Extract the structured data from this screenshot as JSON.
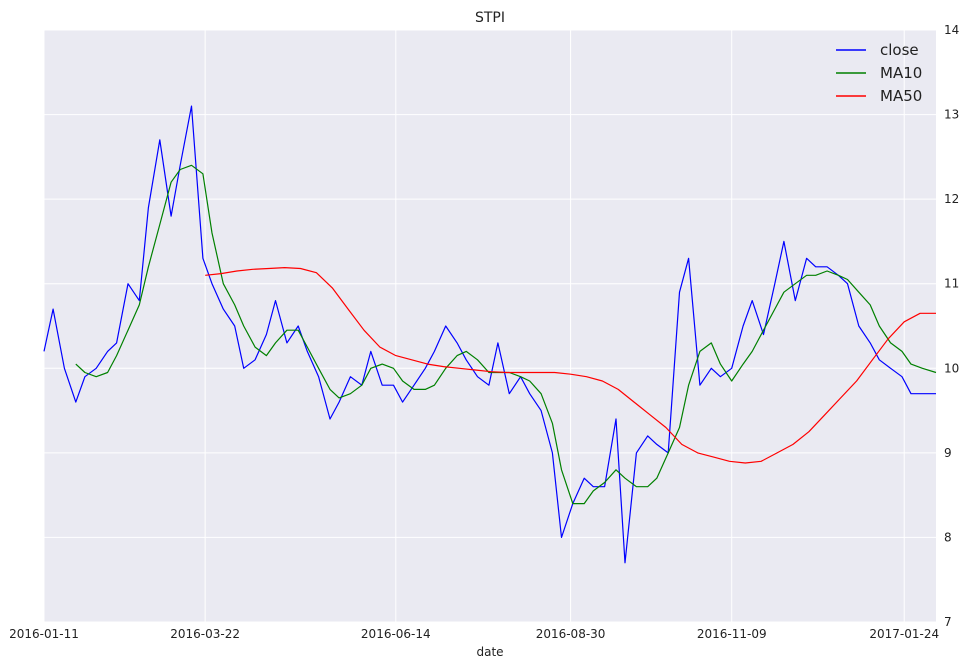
{
  "chart_data": {
    "type": "line",
    "title": "STPI",
    "xlabel": "date",
    "ylabel": "",
    "ylim": [
      7,
      14
    ],
    "y_ticks": [
      7,
      8,
      9,
      10,
      11,
      12,
      13,
      14
    ],
    "x_ticks": [
      "2016-01-11",
      "2016-03-22",
      "2016-06-14",
      "2016-08-30",
      "2016-11-09",
      "2017-01-24"
    ],
    "x_range": [
      "2016-01-11",
      "2017-02-07"
    ],
    "y_axis_side": "right",
    "grid": true,
    "legend_position": "upper-right",
    "colors": {
      "close": "#0000ff",
      "MA10": "#008000",
      "MA50": "#ff0000",
      "plot_bg": "#eaeaf2",
      "grid": "#ffffff"
    },
    "series": [
      {
        "name": "close",
        "x": [
          "2016-01-11",
          "2016-01-15",
          "2016-01-20",
          "2016-01-25",
          "2016-01-29",
          "2016-02-03",
          "2016-02-08",
          "2016-02-12",
          "2016-02-17",
          "2016-02-22",
          "2016-02-26",
          "2016-03-02",
          "2016-03-07",
          "2016-03-11",
          "2016-03-16",
          "2016-03-21",
          "2016-03-25",
          "2016-03-30",
          "2016-04-04",
          "2016-04-08",
          "2016-04-13",
          "2016-04-18",
          "2016-04-22",
          "2016-04-27",
          "2016-05-02",
          "2016-05-06",
          "2016-05-11",
          "2016-05-16",
          "2016-05-20",
          "2016-05-25",
          "2016-05-30",
          "2016-06-03",
          "2016-06-08",
          "2016-06-13",
          "2016-06-17",
          "2016-06-22",
          "2016-06-27",
          "2016-07-01",
          "2016-07-06",
          "2016-07-11",
          "2016-07-15",
          "2016-07-20",
          "2016-07-25",
          "2016-07-29",
          "2016-08-03",
          "2016-08-08",
          "2016-08-12",
          "2016-08-17",
          "2016-08-22",
          "2016-08-26",
          "2016-08-31",
          "2016-09-05",
          "2016-09-09",
          "2016-09-14",
          "2016-09-19",
          "2016-09-23",
          "2016-09-28",
          "2016-10-03",
          "2016-10-07",
          "2016-10-12",
          "2016-10-17",
          "2016-10-21",
          "2016-10-26",
          "2016-10-31",
          "2016-11-04",
          "2016-11-09",
          "2016-11-14",
          "2016-11-18",
          "2016-11-23",
          "2016-11-28",
          "2016-12-02",
          "2016-12-07",
          "2016-12-12",
          "2016-12-16",
          "2016-12-21",
          "2016-12-26",
          "2016-12-30",
          "2017-01-04",
          "2017-01-09",
          "2017-01-13",
          "2017-01-18",
          "2017-01-23",
          "2017-01-27",
          "2017-02-01",
          "2017-02-07"
        ],
        "values": [
          10.2,
          10.7,
          10.0,
          9.6,
          9.9,
          10.0,
          10.2,
          10.3,
          11.0,
          10.8,
          11.9,
          12.7,
          11.8,
          12.4,
          13.1,
          11.3,
          11.0,
          10.7,
          10.5,
          10.0,
          10.1,
          10.4,
          10.8,
          10.3,
          10.5,
          10.2,
          9.9,
          9.4,
          9.6,
          9.9,
          9.8,
          10.2,
          9.8,
          9.8,
          9.6,
          9.8,
          10.0,
          10.2,
          10.5,
          10.3,
          10.1,
          9.9,
          9.8,
          10.3,
          9.7,
          9.9,
          9.7,
          9.5,
          9.0,
          8.0,
          8.4,
          8.7,
          8.6,
          8.6,
          9.4,
          7.7,
          9.0,
          9.2,
          9.1,
          9.0,
          10.9,
          11.3,
          9.8,
          10.0,
          9.9,
          10.0,
          10.5,
          10.8,
          10.4,
          11.0,
          11.5,
          10.8,
          11.3,
          11.2,
          11.2,
          11.1,
          11.0,
          10.5,
          10.3,
          10.1,
          10.0,
          9.9,
          9.7,
          9.7,
          9.7
        ]
      },
      {
        "name": "MA10",
        "x": [
          "2016-01-25",
          "2016-01-29",
          "2016-02-03",
          "2016-02-08",
          "2016-02-12",
          "2016-02-17",
          "2016-02-22",
          "2016-02-26",
          "2016-03-02",
          "2016-03-07",
          "2016-03-11",
          "2016-03-16",
          "2016-03-21",
          "2016-03-25",
          "2016-03-30",
          "2016-04-04",
          "2016-04-08",
          "2016-04-13",
          "2016-04-18",
          "2016-04-22",
          "2016-04-27",
          "2016-05-02",
          "2016-05-06",
          "2016-05-11",
          "2016-05-16",
          "2016-05-20",
          "2016-05-25",
          "2016-05-30",
          "2016-06-03",
          "2016-06-08",
          "2016-06-13",
          "2016-06-17",
          "2016-06-22",
          "2016-06-27",
          "2016-07-01",
          "2016-07-06",
          "2016-07-11",
          "2016-07-15",
          "2016-07-20",
          "2016-07-25",
          "2016-07-29",
          "2016-08-03",
          "2016-08-08",
          "2016-08-12",
          "2016-08-17",
          "2016-08-22",
          "2016-08-26",
          "2016-08-31",
          "2016-09-05",
          "2016-09-09",
          "2016-09-14",
          "2016-09-19",
          "2016-09-23",
          "2016-09-28",
          "2016-10-03",
          "2016-10-07",
          "2016-10-12",
          "2016-10-17",
          "2016-10-21",
          "2016-10-26",
          "2016-10-31",
          "2016-11-04",
          "2016-11-09",
          "2016-11-14",
          "2016-11-18",
          "2016-11-23",
          "2016-11-28",
          "2016-12-02",
          "2016-12-07",
          "2016-12-12",
          "2016-12-16",
          "2016-12-21",
          "2016-12-26",
          "2016-12-30",
          "2017-01-04",
          "2017-01-09",
          "2017-01-13",
          "2017-01-18",
          "2017-01-23",
          "2017-01-27",
          "2017-02-01",
          "2017-02-07"
        ],
        "values": [
          10.05,
          9.95,
          9.9,
          9.95,
          10.15,
          10.45,
          10.75,
          11.2,
          11.7,
          12.2,
          12.35,
          12.4,
          12.3,
          11.6,
          11.0,
          10.75,
          10.5,
          10.25,
          10.15,
          10.3,
          10.45,
          10.45,
          10.25,
          10.0,
          9.75,
          9.65,
          9.7,
          9.8,
          10.0,
          10.05,
          10.0,
          9.85,
          9.75,
          9.75,
          9.8,
          10.0,
          10.15,
          10.2,
          10.1,
          9.95,
          9.95,
          9.95,
          9.9,
          9.85,
          9.7,
          9.35,
          8.8,
          8.4,
          8.4,
          8.55,
          8.65,
          8.8,
          8.7,
          8.6,
          8.6,
          8.7,
          9.0,
          9.3,
          9.8,
          10.2,
          10.3,
          10.05,
          9.85,
          10.05,
          10.2,
          10.45,
          10.7,
          10.9,
          11.0,
          11.1,
          11.1,
          11.15,
          11.1,
          11.05,
          10.9,
          10.75,
          10.5,
          10.3,
          10.2,
          10.05,
          10.0,
          9.95
        ]
      },
      {
        "name": "MA50",
        "x": [
          "2016-03-22",
          "2016-03-29",
          "2016-04-05",
          "2016-04-12",
          "2016-04-19",
          "2016-04-26",
          "2016-05-03",
          "2016-05-10",
          "2016-05-17",
          "2016-05-24",
          "2016-05-31",
          "2016-06-07",
          "2016-06-14",
          "2016-06-21",
          "2016-06-28",
          "2016-07-05",
          "2016-07-12",
          "2016-07-19",
          "2016-07-26",
          "2016-08-02",
          "2016-08-09",
          "2016-08-16",
          "2016-08-23",
          "2016-08-30",
          "2016-09-06",
          "2016-09-13",
          "2016-09-20",
          "2016-09-27",
          "2016-10-04",
          "2016-10-11",
          "2016-10-18",
          "2016-10-25",
          "2016-11-01",
          "2016-11-08",
          "2016-11-15",
          "2016-11-22",
          "2016-11-29",
          "2016-12-06",
          "2016-12-13",
          "2016-12-20",
          "2016-12-27",
          "2017-01-03",
          "2017-01-10",
          "2017-01-17",
          "2017-01-24",
          "2017-01-31",
          "2017-02-07"
        ],
        "values": [
          11.1,
          11.12,
          11.15,
          11.17,
          11.18,
          11.19,
          11.18,
          11.13,
          10.95,
          10.7,
          10.45,
          10.25,
          10.15,
          10.1,
          10.05,
          10.02,
          10.0,
          9.98,
          9.96,
          9.95,
          9.95,
          9.95,
          9.95,
          9.93,
          9.9,
          9.85,
          9.75,
          9.6,
          9.45,
          9.3,
          9.1,
          9.0,
          8.95,
          8.9,
          8.88,
          8.9,
          9.0,
          9.1,
          9.25,
          9.45,
          9.65,
          9.85,
          10.1,
          10.35,
          10.55,
          10.65,
          10.65
        ]
      }
    ]
  }
}
